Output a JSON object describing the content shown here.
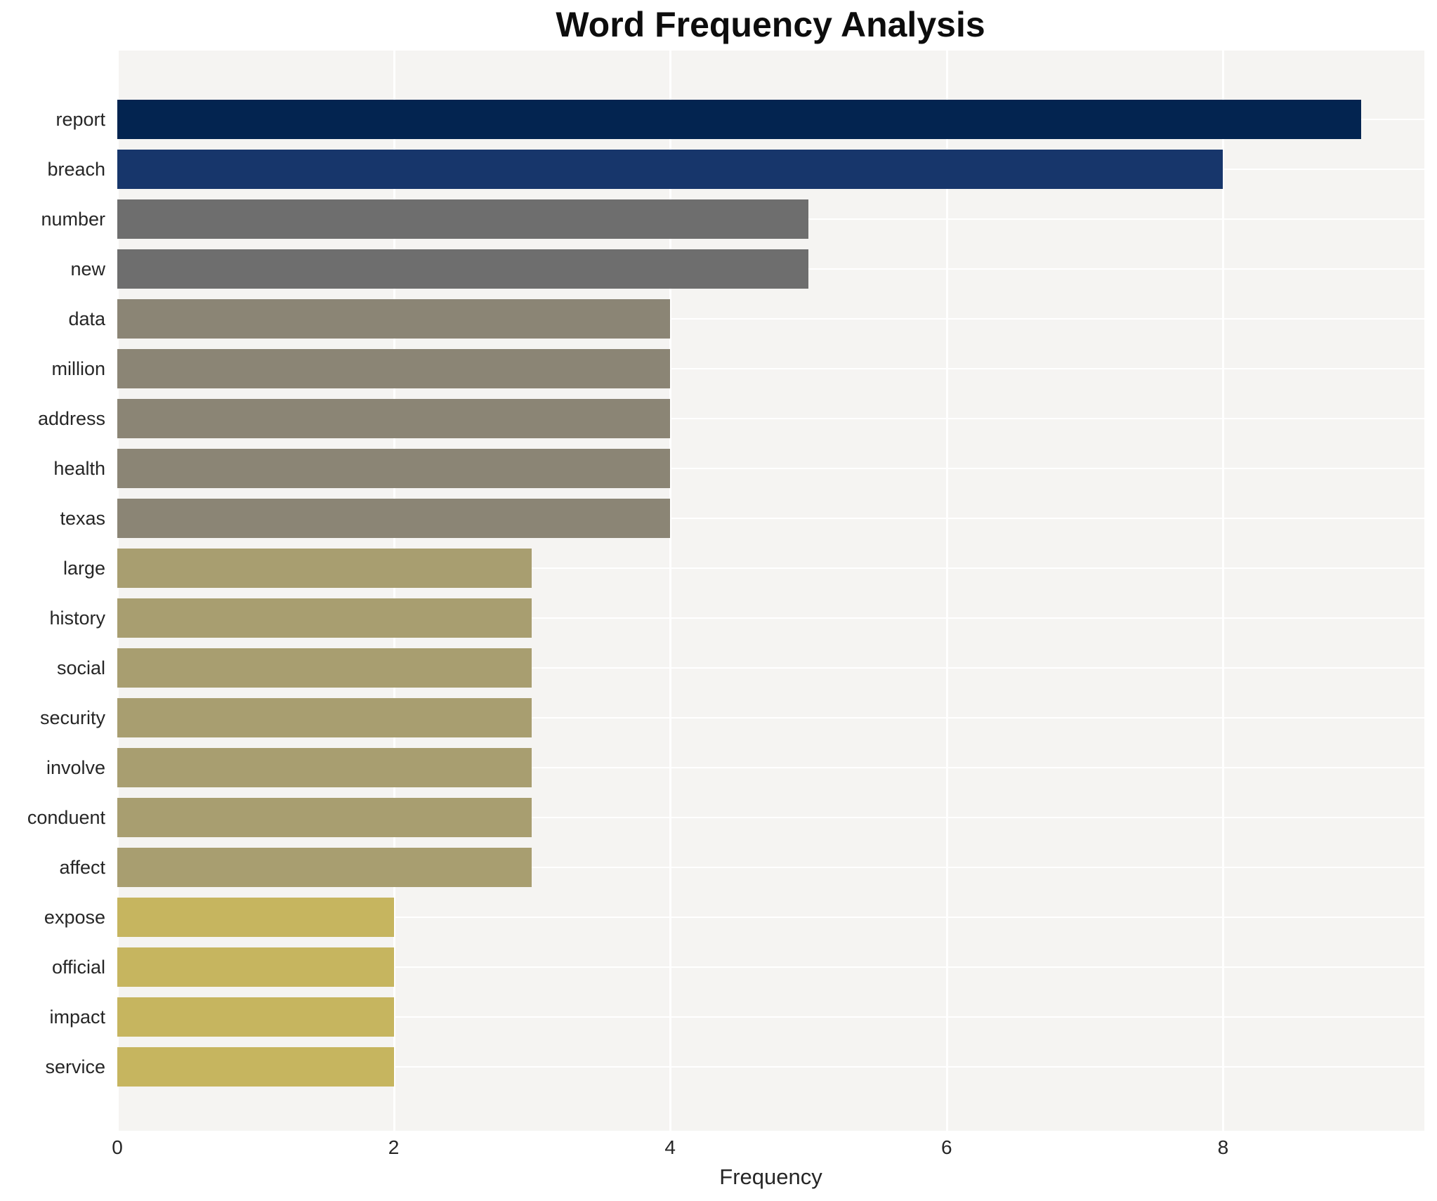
{
  "chart_data": {
    "type": "bar",
    "orientation": "horizontal",
    "title": "Word Frequency Analysis",
    "xlabel": "Frequency",
    "ylabel": "",
    "xlim": [
      0,
      9.46
    ],
    "xticks": [
      0,
      2,
      4,
      6,
      8
    ],
    "grid": "white gridlines on light gray panel, at x ticks and category centers",
    "legend": "none",
    "categories": [
      "report",
      "breach",
      "number",
      "new",
      "data",
      "million",
      "address",
      "health",
      "texas",
      "large",
      "history",
      "social",
      "security",
      "involve",
      "conduent",
      "affect",
      "expose",
      "official",
      "impact",
      "service"
    ],
    "values": [
      9,
      8,
      5,
      5,
      4,
      4,
      4,
      4,
      4,
      3,
      3,
      3,
      3,
      3,
      3,
      3,
      2,
      2,
      2,
      2
    ],
    "bar_colors": [
      "#032450",
      "#17366b",
      "#6e6e6e",
      "#6e6e6e",
      "#8b8575",
      "#8b8575",
      "#8b8575",
      "#8b8575",
      "#8b8575",
      "#a89e70",
      "#a89e70",
      "#a89e70",
      "#a89e70",
      "#a89e70",
      "#a89e70",
      "#a89e70",
      "#c6b55f",
      "#c6b55f",
      "#c6b55f",
      "#c6b55f"
    ]
  },
  "style": {
    "plot_background": "#f5f4f2",
    "figure_background": "#ffffff",
    "grid_color": "#ffffff",
    "text_color": "#262626",
    "title_color": "#0d0d0d"
  }
}
